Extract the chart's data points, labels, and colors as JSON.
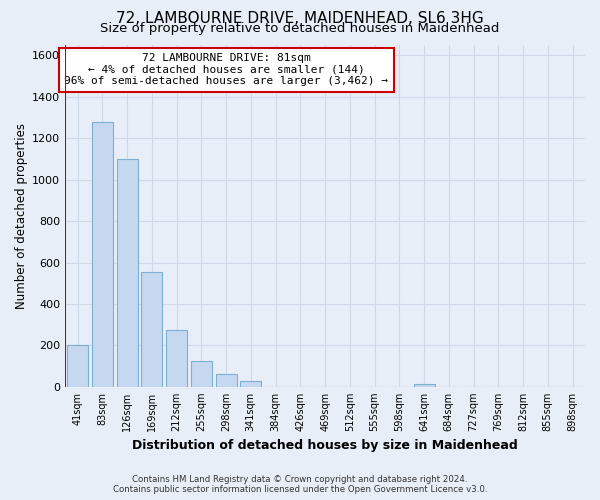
{
  "title": "72, LAMBOURNE DRIVE, MAIDENHEAD, SL6 3HG",
  "subtitle": "Size of property relative to detached houses in Maidenhead",
  "xlabel": "Distribution of detached houses by size in Maidenhead",
  "ylabel": "Number of detached properties",
  "bar_labels": [
    "41sqm",
    "83sqm",
    "126sqm",
    "169sqm",
    "212sqm",
    "255sqm",
    "298sqm",
    "341sqm",
    "384sqm",
    "426sqm",
    "469sqm",
    "512sqm",
    "555sqm",
    "598sqm",
    "641sqm",
    "684sqm",
    "727sqm",
    "769sqm",
    "812sqm",
    "855sqm",
    "898sqm"
  ],
  "bar_values": [
    200,
    1280,
    1100,
    555,
    275,
    125,
    60,
    30,
    0,
    0,
    0,
    0,
    0,
    0,
    15,
    0,
    0,
    0,
    0,
    0,
    0
  ],
  "bar_color": "#c5d8f0",
  "bar_edge_color": "#7bafd4",
  "ylim": [
    0,
    1650
  ],
  "yticks": [
    0,
    200,
    400,
    600,
    800,
    1000,
    1200,
    1400,
    1600
  ],
  "vline_x": -0.5,
  "vline_color": "#cc0000",
  "annotation_line1": "72 LAMBOURNE DRIVE: 81sqm",
  "annotation_line2": "← 4% of detached houses are smaller (144)",
  "annotation_line3": "96% of semi-detached houses are larger (3,462) →",
  "annotation_box_color": "#ffffff",
  "annotation_box_edge": "#cc0000",
  "footer_line1": "Contains HM Land Registry data © Crown copyright and database right 2024.",
  "footer_line2": "Contains public sector information licensed under the Open Government Licence v3.0.",
  "background_color": "#e8eef8",
  "grid_color": "#d0d8e8",
  "title_fontsize": 11,
  "subtitle_fontsize": 9.5,
  "xlabel_fontsize": 9,
  "ylabel_fontsize": 8.5
}
